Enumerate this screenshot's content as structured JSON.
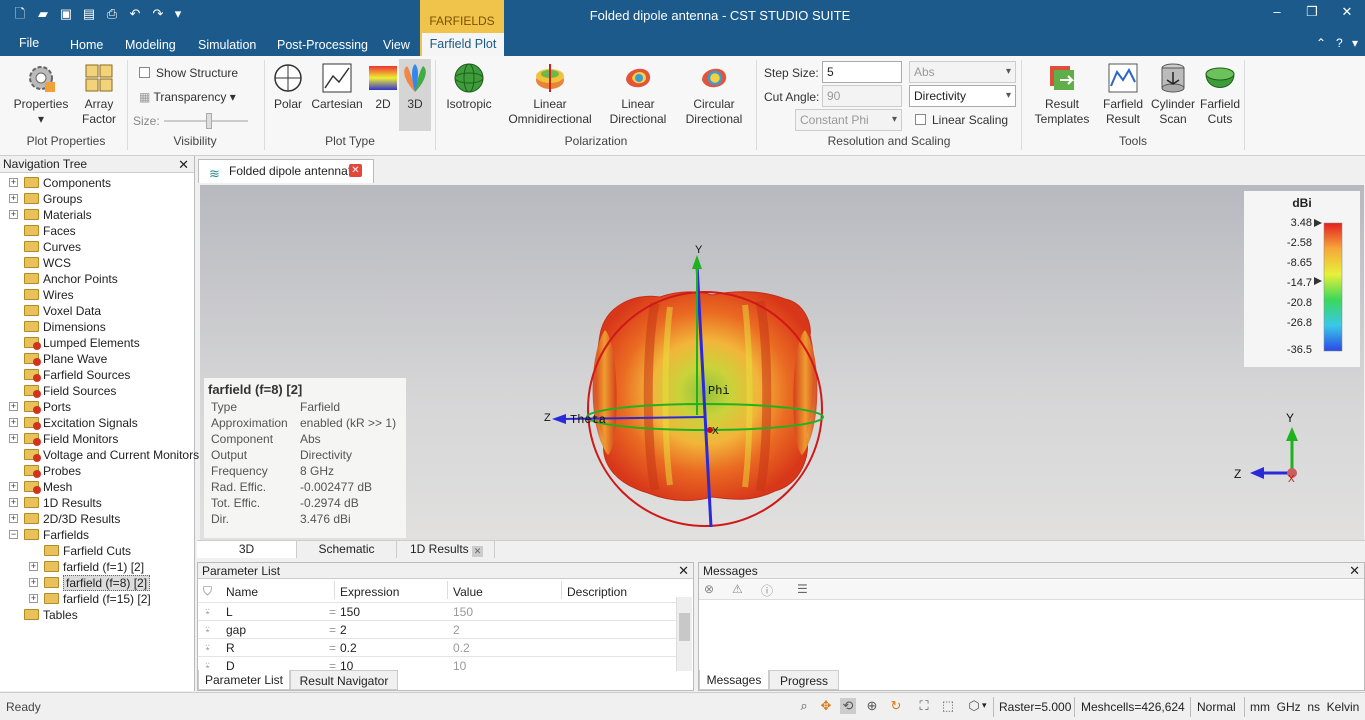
{
  "app": {
    "title": "Folded dipole antenna - CST STUDIO SUITE",
    "context_tab": "FARFIELDS"
  },
  "menu": {
    "file": "File",
    "home": "Home",
    "modeling": "Modeling",
    "simulation": "Simulation",
    "post_processing": "Post-Processing",
    "view": "View",
    "farfield_plot": "Farfield Plot"
  },
  "ribbon": {
    "plot_properties": {
      "properties": "Properties",
      "array_factor_l1": "Array",
      "array_factor_l2": "Factor",
      "group": "Plot Properties"
    },
    "visibility": {
      "show_structure": "Show Structure",
      "transparency": "Transparency",
      "size": "Size:",
      "group": "Visibility"
    },
    "plot_type": {
      "polar": "Polar",
      "cartesian": "Cartesian",
      "two_d": "2D",
      "three_d": "3D",
      "group": "Plot Type"
    },
    "polarization": {
      "isotropic": "Isotropic",
      "lin_omni_l1": "Linear",
      "lin_omni_l2": "Omnidirectional",
      "lin_dir_l1": "Linear",
      "lin_dir_l2": "Directional",
      "circ_dir_l1": "Circular",
      "circ_dir_l2": "Directional",
      "group": "Polarization"
    },
    "resolution": {
      "step_size_label": "Step Size:",
      "step_size": "5",
      "cut_angle_label": "Cut Angle:",
      "cut_angle": "90",
      "abs": "Abs",
      "directivity": "Directivity",
      "constant_phi": "Constant Phi",
      "linear_scaling": "Linear Scaling",
      "group": "Resolution and Scaling"
    },
    "tools": {
      "result_templates_l1": "Result",
      "result_templates_l2": "Templates",
      "farfield_result_l1": "Farfield",
      "farfield_result_l2": "Result",
      "cylinder_scan_l1": "Cylinder",
      "cylinder_scan_l2": "Scan",
      "farfield_cuts_l1": "Farfield",
      "farfield_cuts_l2": "Cuts",
      "group": "Tools"
    }
  },
  "nav": {
    "title": "Navigation Tree",
    "items": [
      "Components",
      "Groups",
      "Materials",
      "Faces",
      "Curves",
      "WCS",
      "Anchor Points",
      "Wires",
      "Voxel Data",
      "Dimensions",
      "Lumped Elements",
      "Plane Wave",
      "Farfield Sources",
      "Field Sources",
      "Ports",
      "Excitation Signals",
      "Field Monitors",
      "Voltage and Current Monitors",
      "Probes",
      "Mesh",
      "1D Results",
      "2D/3D Results",
      "Farfields",
      "Farfield Cuts",
      "farfield (f=1) [2]",
      "farfield (f=8) [2]",
      "farfield (f=15) [2]",
      "Tables"
    ]
  },
  "doc_tab": "Folded dipole antenna*",
  "legend": {
    "unit": "dBi",
    "ticks": [
      "3.48",
      "-2.58",
      "-8.65",
      "-14.7",
      "-20.8",
      "-26.8",
      "-36.5"
    ]
  },
  "axes": {
    "y": "Y",
    "z": "Z",
    "x": "X",
    "phi": "Phi",
    "theta": "Theta"
  },
  "info": {
    "title": "farfield (f=8) [2]",
    "rows": [
      {
        "k": "Type",
        "v": "Farfield"
      },
      {
        "k": "Approximation",
        "v": "enabled (kR >> 1)"
      },
      {
        "k": "Component",
        "v": "Abs"
      },
      {
        "k": "Output",
        "v": "Directivity"
      },
      {
        "k": "Frequency",
        "v": "8 GHz"
      },
      {
        "k": "Rad. Effic.",
        "v": "-0.002477 dB"
      },
      {
        "k": "Tot. Effic.",
        "v": "-0.2974 dB"
      },
      {
        "k": "Dir.",
        "v": "3.476 dBi"
      }
    ]
  },
  "view_tabs": {
    "t3d": "3D",
    "schematic": "Schematic",
    "results1d": "1D Results"
  },
  "param": {
    "title": "Parameter List",
    "cols": [
      "Name",
      "Expression",
      "Value",
      "Description"
    ],
    "rows": [
      {
        "name": "L",
        "expr": "150",
        "value": "150"
      },
      {
        "name": "gap",
        "expr": "2",
        "value": "2"
      },
      {
        "name": "R",
        "expr": "0.2",
        "value": "0.2"
      },
      {
        "name": "D",
        "expr": "10",
        "value": "10"
      }
    ],
    "tab_param": "Parameter List",
    "tab_result": "Result Navigator"
  },
  "messages": {
    "title": "Messages",
    "tab_messages": "Messages",
    "tab_progress": "Progress"
  },
  "status": {
    "ready": "Ready",
    "raster": "Raster=5.000",
    "meshcells": "Meshcells=426,624",
    "mode": "Normal",
    "units": "mm  GHz  ns  Kelvin"
  }
}
